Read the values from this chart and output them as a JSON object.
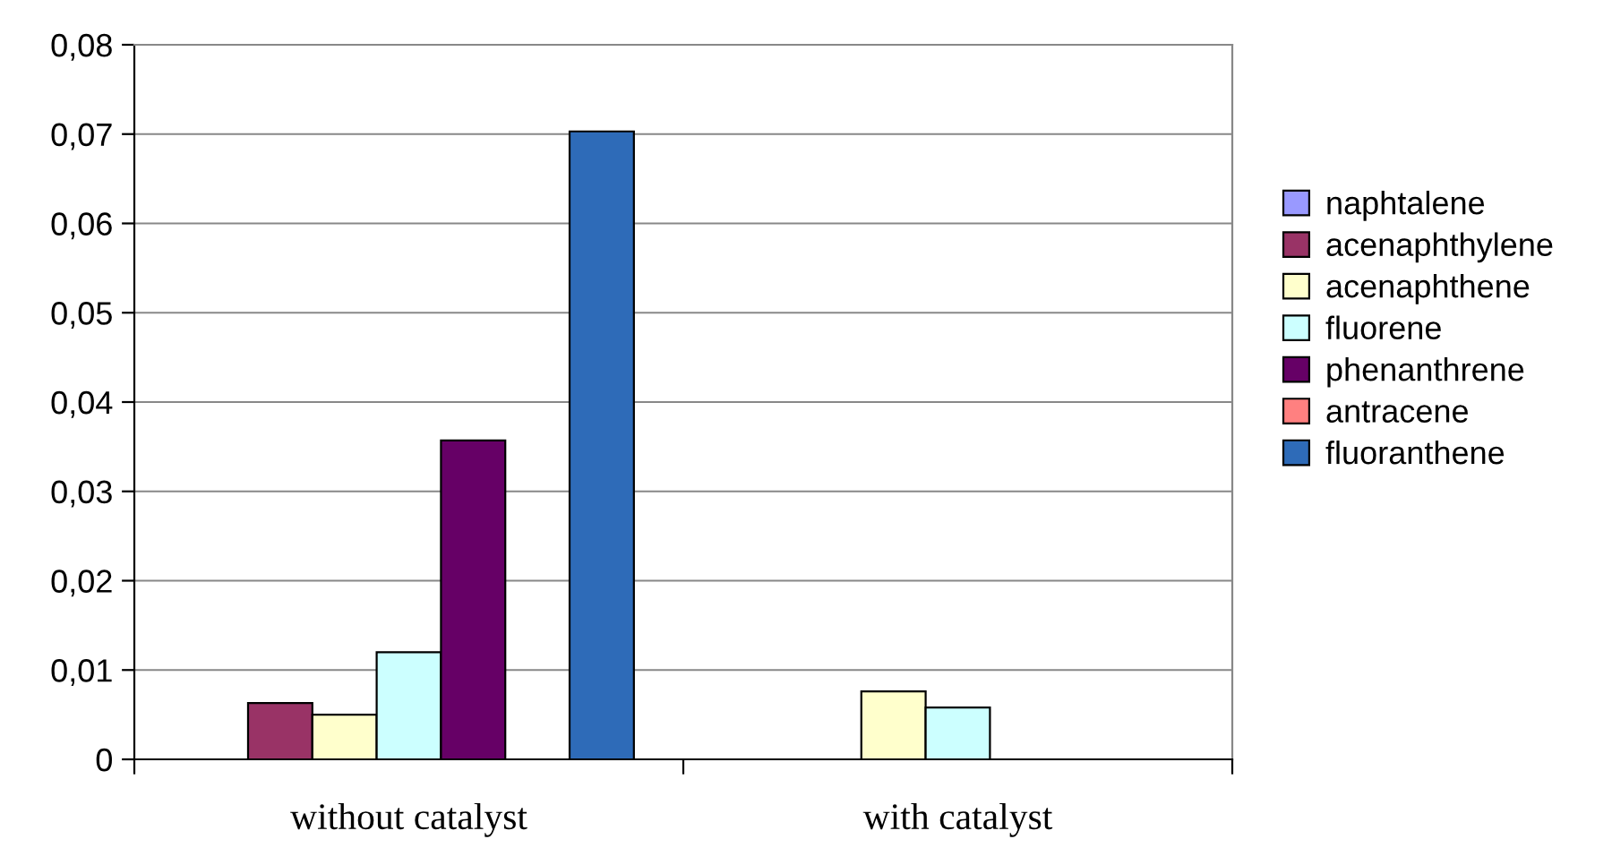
{
  "chart_data": {
    "type": "bar",
    "categories": [
      "without catalyst",
      "with catalyst"
    ],
    "series": [
      {
        "name": "naphtalene",
        "color": "#9999ff",
        "values": [
          null,
          null
        ]
      },
      {
        "name": "acenaphthylene",
        "color": "#993366",
        "values": [
          0.0063,
          null
        ]
      },
      {
        "name": "acenaphthene",
        "color": "#ffffcc",
        "values": [
          0.005,
          0.0076
        ]
      },
      {
        "name": "fluorene",
        "color": "#ccffff",
        "values": [
          0.012,
          0.0058
        ]
      },
      {
        "name": "phenanthrene",
        "color": "#660066",
        "values": [
          0.0357,
          null
        ]
      },
      {
        "name": "antracene",
        "color": "#ff8080",
        "values": [
          null,
          null
        ]
      },
      {
        "name": "fluoranthene",
        "color": "#2e6bb8",
        "values": [
          0.0703,
          null
        ]
      }
    ],
    "ylim": [
      0,
      0.08
    ],
    "yticks": [
      {
        "value": 0,
        "label": "0"
      },
      {
        "value": 0.01,
        "label": "0,01"
      },
      {
        "value": 0.02,
        "label": "0,02"
      },
      {
        "value": 0.03,
        "label": "0,03"
      },
      {
        "value": 0.04,
        "label": "0,04"
      },
      {
        "value": 0.05,
        "label": "0,05"
      },
      {
        "value": 0.06,
        "label": "0,06"
      },
      {
        "value": 0.07,
        "label": "0,07"
      },
      {
        "value": 0.08,
        "label": "0,08"
      }
    ],
    "grid": "y",
    "legend": "right"
  }
}
